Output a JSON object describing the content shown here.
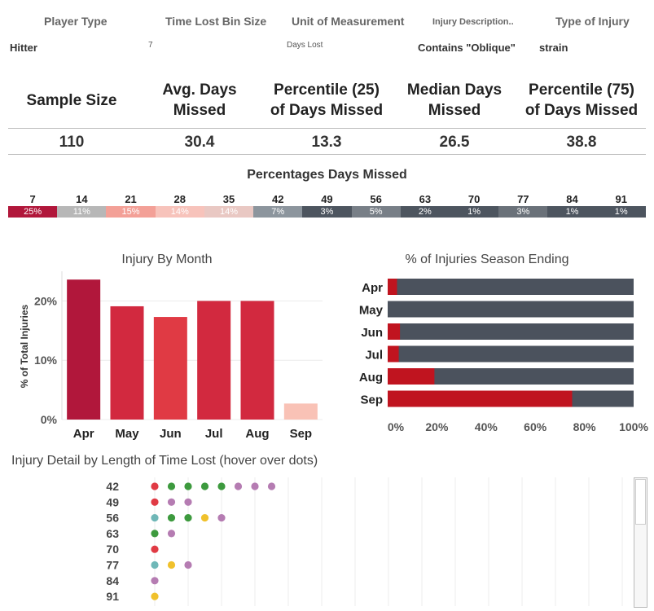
{
  "filters": [
    {
      "label": "Player Type",
      "value": "Hitter"
    },
    {
      "label": "Time Lost Bin Size",
      "value": "7"
    },
    {
      "label": "Unit of Measurement",
      "value": "Days Lost"
    },
    {
      "label": "Injury Description..",
      "value": "Contains \"Oblique\""
    },
    {
      "label": "Type of Injury",
      "value": "strain"
    }
  ],
  "kpis": [
    {
      "label": "Sample Size",
      "value": "110"
    },
    {
      "label": "Avg. Days Missed",
      "value": "30.4"
    },
    {
      "label": "Percentile (25) of Days Missed",
      "value": "13.3"
    },
    {
      "label": "Median Days Missed",
      "value": "26.5"
    },
    {
      "label": "Percentile (75) of Days Missed",
      "value": "38.8"
    }
  ],
  "pct_strip": {
    "title": "Percentages Days Missed",
    "bins": [
      "7",
      "14",
      "21",
      "28",
      "35",
      "42",
      "49",
      "56",
      "63",
      "70",
      "77",
      "84",
      "91"
    ],
    "percents": [
      "25%",
      "11%",
      "15%",
      "14%",
      "14%",
      "7%",
      "3%",
      "5%",
      "2%",
      "1%",
      "3%",
      "1%",
      "1%"
    ],
    "colors": [
      "#b1173b",
      "#b7b7b7",
      "#f3a097",
      "#f7c3bb",
      "#e9c8c3",
      "#8c959d",
      "#4d555f",
      "#787f87",
      "#4d555f",
      "#4d555f",
      "#6a7179",
      "#4d555f",
      "#4d555f"
    ]
  },
  "chart_data": [
    {
      "type": "bar",
      "title": "Injury By Month",
      "ylabel": "% of Total Injuries",
      "categories": [
        "Apr",
        "May",
        "Jun",
        "Jul",
        "Aug",
        "Sep"
      ],
      "values": [
        23.6,
        19.1,
        17.3,
        20.0,
        20.0,
        2.7
      ],
      "colors": [
        "#b1173b",
        "#d2293f",
        "#e03a44",
        "#d2293f",
        "#d2293f",
        "#f9c2b6"
      ],
      "ylim": [
        0,
        25
      ],
      "yticks": [
        "0%",
        "10%",
        "20%"
      ],
      "ytick_values": [
        0,
        10,
        20
      ]
    },
    {
      "type": "bar",
      "orientation": "horizontal",
      "stacked": true,
      "title": "% of Injuries Season Ending",
      "categories": [
        "Apr",
        "May",
        "Jun",
        "Jul",
        "Aug",
        "Sep"
      ],
      "season_ending_pct": [
        3.8,
        0,
        5.0,
        4.5,
        19.0,
        75.0
      ],
      "colors": {
        "season_ending": "#c0141f",
        "not_season_ending": "#4b525d"
      },
      "xlim": [
        0,
        100
      ],
      "xticks": [
        "0%",
        "20%",
        "40%",
        "60%",
        "80%",
        "100%"
      ],
      "xtick_values": [
        0,
        20,
        40,
        60,
        80,
        100
      ]
    },
    {
      "type": "scatter",
      "title": "Injury Detail by Length of Time Lost (hover over dots)",
      "categories": [
        "42",
        "49",
        "56",
        "63",
        "70",
        "77",
        "84",
        "91"
      ],
      "dots": [
        [
          "#e03a44",
          "#3d9a3e",
          "#3d9a3e",
          "#3d9a3e",
          "#3d9a3e",
          "#b57cb2",
          "#b57cb2",
          "#b57cb2"
        ],
        [
          "#e03a44",
          "#b57cb2",
          "#b57cb2"
        ],
        [
          "#6fb7b7",
          "#3d9a3e",
          "#3d9a3e",
          "#f0c12c",
          "#b57cb2"
        ],
        [
          "#3d9a3e",
          "#b57cb2"
        ],
        [
          "#e03a44"
        ],
        [
          "#6fb7b7",
          "#f0c12c",
          "#b57cb2"
        ],
        [
          "#b57cb2"
        ],
        [
          "#f0c12c"
        ]
      ]
    }
  ]
}
